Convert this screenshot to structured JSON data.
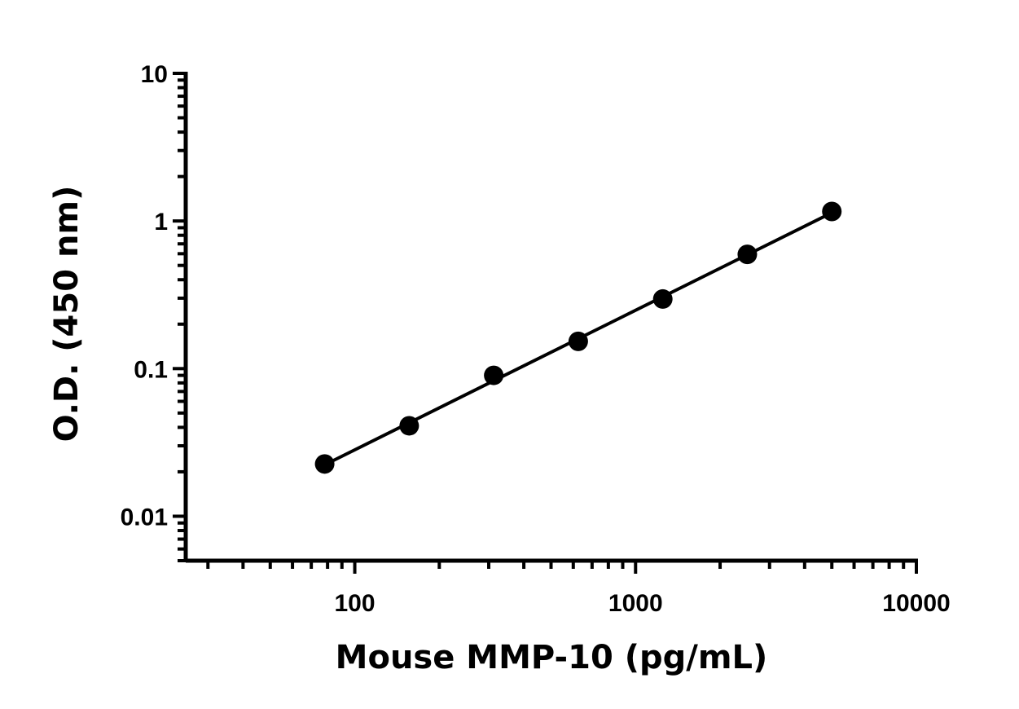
{
  "chart_data": {
    "type": "scatter",
    "title": "",
    "xlabel": "Mouse MMP-10 (pg/mL)",
    "ylabel": "O.D. (450 nm)",
    "x_scale": "log",
    "y_scale": "log",
    "xlim": [
      25,
      10000
    ],
    "ylim": [
      0.005,
      10
    ],
    "x_ticks": [
      100,
      1000,
      10000
    ],
    "x_tick_labels": [
      "100",
      "1000",
      "10000"
    ],
    "y_ticks": [
      0.01,
      0.1,
      1,
      10
    ],
    "y_tick_labels": [
      "0.01",
      "0.1",
      "1",
      "10"
    ],
    "grid": false,
    "series": [
      {
        "x": [
          78.125,
          156.25,
          312.5,
          625,
          1250,
          2500,
          5000
        ],
        "y": [
          0.0226,
          0.041,
          0.09,
          0.153,
          0.296,
          0.594,
          1.16
        ],
        "marker": "circle",
        "fit_line": true,
        "color": "#000000"
      }
    ]
  }
}
